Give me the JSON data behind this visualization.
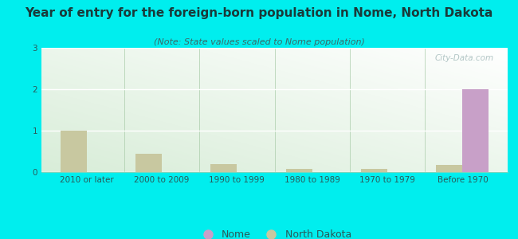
{
  "title": "Year of entry for the foreign-born population in Nome, North Dakota",
  "subtitle": "(Note: State values scaled to Nome population)",
  "categories": [
    "2010 or later",
    "2000 to 2009",
    "1990 to 1999",
    "1980 to 1989",
    "1970 to 1979",
    "Before 1970"
  ],
  "nome_values": [
    0,
    0,
    0,
    0,
    0,
    2
  ],
  "nd_values": [
    1.0,
    0.45,
    0.2,
    0.07,
    0.07,
    0.17
  ],
  "nome_color": "#c8a0c8",
  "nd_color": "#c8c8a0",
  "background_color": "#00eeee",
  "grad_color_topleft": "#d8edd8",
  "grad_color_bottomright": "#f5fff5",
  "ylim": [
    0,
    3
  ],
  "yticks": [
    0,
    1,
    2,
    3
  ],
  "bar_width": 0.35,
  "title_fontsize": 11,
  "subtitle_fontsize": 8,
  "tick_fontsize": 7.5,
  "legend_fontsize": 9,
  "title_color": "#1a3a3a",
  "subtitle_color": "#3a6a6a",
  "tick_color": "#2a5a5a",
  "grid_color": "#ffffff"
}
